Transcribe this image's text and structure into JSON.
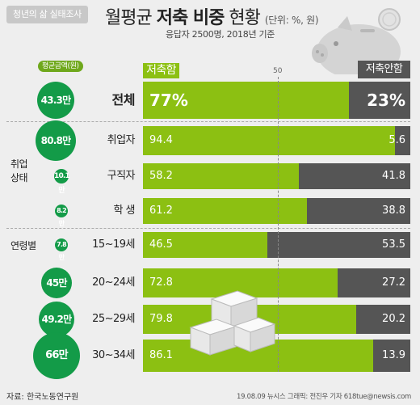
{
  "header": {
    "tag": "청년의 삶 실태조사",
    "title_pre": "월평균",
    "title_bold": "저축 비중",
    "title_post": "현황",
    "unit": "(단위: %, 원)",
    "subtitle": "응답자 2500명, 2018년 기준"
  },
  "legend": {
    "avg_amount": "평균금액(원)",
    "saving": "저축함",
    "not_saving": "저축안함",
    "midpoint": "50"
  },
  "groups": {
    "employment": "취업\n상태",
    "employment_l1": "취업",
    "employment_l2": "상태",
    "age": "연령별"
  },
  "colors": {
    "saving": "#8cc012",
    "not_saving": "#555555",
    "bubble": "#139b48"
  },
  "footer": {
    "source": "자료: 한국노동연구원",
    "credit": "19.08.09  뉴시스 그래픽: 전진우 기자 618tue@newsis.com"
  },
  "chart_data": {
    "type": "bar",
    "stacked": true,
    "orientation": "horizontal",
    "categories": [
      "전체",
      "취업자",
      "구직자",
      "학 생",
      "15~19세",
      "20~24세",
      "25~29세",
      "30~34세"
    ],
    "series": [
      {
        "name": "저축함",
        "values": [
          77,
          94.4,
          58.2,
          61.2,
          46.5,
          72.8,
          79.8,
          86.1
        ],
        "labels": [
          "77%",
          "94.4",
          "58.2",
          "61.2",
          "46.5",
          "72.8",
          "79.8",
          "86.1"
        ]
      },
      {
        "name": "저축안함",
        "values": [
          23,
          5.6,
          41.8,
          38.8,
          53.5,
          27.2,
          20.2,
          13.9
        ],
        "labels": [
          "23%",
          "5.6",
          "41.8",
          "38.8",
          "53.5",
          "27.2",
          "20.2",
          "13.9"
        ]
      }
    ],
    "avg_amount": [
      "43.3만",
      "80.8만",
      "10.1만",
      "8.2만",
      "7.8만",
      "45만",
      "49.2만",
      "66만"
    ],
    "xlim": [
      0,
      100
    ]
  }
}
